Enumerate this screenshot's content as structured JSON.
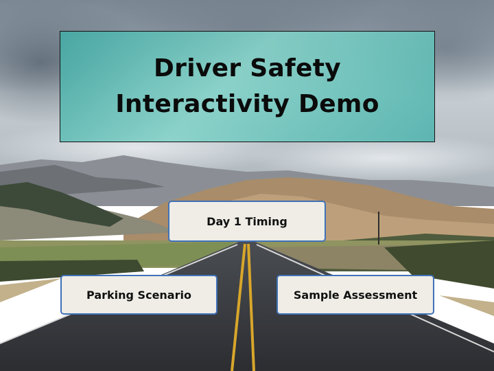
{
  "title": {
    "line1": "Driver Safety",
    "line2": "Interactivity Demo"
  },
  "buttons": {
    "day1": "Day 1 Timing",
    "parking": "Parking Scenario",
    "sample": "Sample Assessment"
  },
  "colors": {
    "title_box": "#5fbfb8",
    "button_fill": "#efede6",
    "button_border": "#3f72b8"
  }
}
